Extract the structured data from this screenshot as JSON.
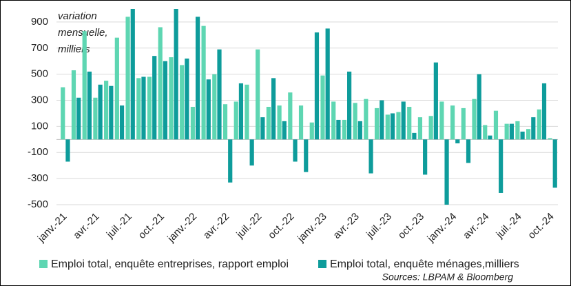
{
  "chart_data": {
    "type": "bar",
    "annotation": [
      "variation",
      "mensuelle,",
      "milliers"
    ],
    "source": "Sources: LBPAM & Bloomberg",
    "categories": [
      "janv.-21",
      null,
      null,
      "avr.-21",
      null,
      null,
      "juil.-21",
      null,
      null,
      "oct.-21",
      null,
      null,
      "janv.-22",
      null,
      null,
      "avr.-22",
      null,
      null,
      "juil.-22",
      null,
      null,
      "oct.-22",
      null,
      null,
      "janv.-23",
      null,
      null,
      "avr.-23",
      null,
      null,
      "juil.-23",
      null,
      null,
      "oct.-23",
      null,
      null,
      "janv.-24",
      null,
      null,
      "avr.-24",
      null,
      null,
      "juil.-24",
      null,
      null,
      "oct.-24"
    ],
    "series": [
      {
        "name": "Emploi total, enquête entreprises, rapport emploi",
        "color": "#5ed6b2",
        "values": [
          400,
          530,
          830,
          320,
          450,
          780,
          940,
          470,
          480,
          860,
          630,
          570,
          250,
          870,
          500,
          270,
          290,
          420,
          690,
          250,
          260,
          360,
          260,
          130,
          490,
          290,
          150,
          280,
          310,
          240,
          190,
          210,
          250,
          170,
          180,
          290,
          260,
          240,
          310,
          110,
          220,
          120,
          140,
          80,
          230,
          10
        ]
      },
      {
        "name": "Emploi total, enquête ménages,milliers",
        "color": "#0e9c9b",
        "values": [
          -170,
          320,
          520,
          420,
          410,
          260,
          1000,
          480,
          640,
          600,
          1000,
          620,
          940,
          460,
          690,
          -330,
          430,
          -200,
          170,
          470,
          140,
          -170,
          -250,
          820,
          850,
          150,
          520,
          140,
          -260,
          300,
          200,
          290,
          50,
          -270,
          590,
          -500,
          -30,
          -180,
          500,
          30,
          -410,
          120,
          60,
          170,
          430,
          -370
        ]
      }
    ],
    "ylim": [
      -500,
      1000
    ],
    "yticks": [
      -500,
      -300,
      -100,
      100,
      300,
      500,
      700,
      900
    ],
    "grid": true
  }
}
